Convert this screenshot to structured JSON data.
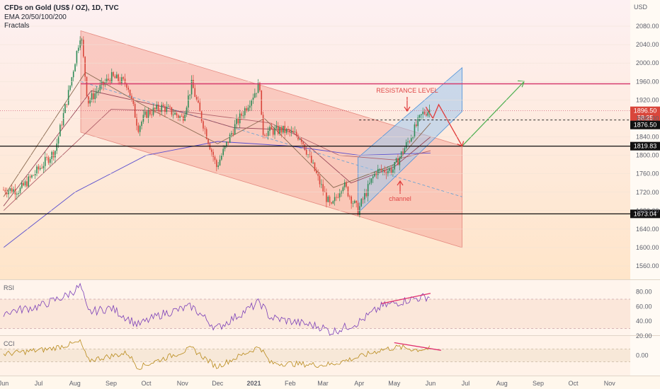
{
  "header": {
    "title": "CFDs on Gold (US$ / OZ), 1D, TVC",
    "indicator_1": "EMA 20/50/100/200",
    "indicator_2": "Fractals",
    "currency": "USD"
  },
  "colors": {
    "bg_top": "#fdf0f2",
    "bg_bottom": "#ffe5c9",
    "channel_fill": "#f6a59a",
    "up_channel_fill": "#9ec6ec",
    "candle_up": "#2e8b57",
    "candle_down": "#d9463b",
    "resistance": "#d63c6e",
    "forecast_red": "#e03b3b",
    "forecast_green": "#4caf50",
    "rsi_line": "#7b3fb8",
    "cci_line": "#b88a1a",
    "divergence": "#e0306e"
  },
  "chart_data": [
    {
      "type": "candlestick",
      "panel": "price",
      "ylim": [
        1530,
        2120
      ],
      "y_ticks": [
        1560,
        1600,
        1640,
        1680,
        1720,
        1760,
        1800,
        1840,
        1880,
        1920,
        1960,
        2000,
        2040,
        2080
      ],
      "x_labels": [
        "Jun",
        "Jul",
        "Aug",
        "Sep",
        "Oct",
        "Nov",
        "Dec",
        "2021",
        "Feb",
        "Mar",
        "Apr",
        "May",
        "Jun",
        "Jul",
        "Aug",
        "Sep",
        "Oct",
        "Nov"
      ],
      "close_path": [
        [
          "2020-06-01",
          1725
        ],
        [
          "2020-06-15",
          1725
        ],
        [
          "2020-07-01",
          1770
        ],
        [
          "2020-07-15",
          1810
        ],
        [
          "2020-07-27",
          1940
        ],
        [
          "2020-08-06",
          2067
        ],
        [
          "2020-08-12",
          1915
        ],
        [
          "2020-08-20",
          1940
        ],
        [
          "2020-09-01",
          1970
        ],
        [
          "2020-09-15",
          1955
        ],
        [
          "2020-09-24",
          1860
        ],
        [
          "2020-10-01",
          1890
        ],
        [
          "2020-10-15",
          1905
        ],
        [
          "2020-11-01",
          1880
        ],
        [
          "2020-11-09",
          1955
        ],
        [
          "2020-11-16",
          1890
        ],
        [
          "2020-11-30",
          1775
        ],
        [
          "2020-12-15",
          1860
        ],
        [
          "2021-01-06",
          1955
        ],
        [
          "2021-01-08",
          1850
        ],
        [
          "2021-01-25",
          1855
        ],
        [
          "2021-02-10",
          1840
        ],
        [
          "2021-02-28",
          1730
        ],
        [
          "2021-03-08",
          1685
        ],
        [
          "2021-03-18",
          1740
        ],
        [
          "2021-03-31",
          1680
        ],
        [
          "2021-04-15",
          1765
        ],
        [
          "2021-04-30",
          1770
        ],
        [
          "2021-05-15",
          1840
        ],
        [
          "2021-05-25",
          1890
        ],
        [
          "2021-06-01",
          1900
        ]
      ],
      "ema_20_path": [
        [
          "2020-06-01",
          1710
        ],
        [
          "2020-08-10",
          1980
        ],
        [
          "2020-10-01",
          1905
        ],
        [
          "2020-12-01",
          1825
        ],
        [
          "2021-01-10",
          1880
        ],
        [
          "2021-03-10",
          1730
        ],
        [
          "2021-05-01",
          1780
        ],
        [
          "2021-06-01",
          1870
        ]
      ],
      "ema_50_path": [
        [
          "2020-06-01",
          1690
        ],
        [
          "2020-08-15",
          1940
        ],
        [
          "2020-10-15",
          1905
        ],
        [
          "2020-12-15",
          1860
        ],
        [
          "2021-02-01",
          1855
        ],
        [
          "2021-03-25",
          1740
        ],
        [
          "2021-05-01",
          1775
        ],
        [
          "2021-06-01",
          1840
        ]
      ],
      "ema_100_path": [
        [
          "2020-06-01",
          1680
        ],
        [
          "2020-09-01",
          1900
        ],
        [
          "2020-11-01",
          1895
        ],
        [
          "2021-01-15",
          1870
        ],
        [
          "2021-03-15",
          1800
        ],
        [
          "2021-05-01",
          1790
        ],
        [
          "2021-06-01",
          1810
        ]
      ],
      "ema_200_path": [
        [
          "2020-06-01",
          1600
        ],
        [
          "2020-08-01",
          1720
        ],
        [
          "2020-10-01",
          1800
        ],
        [
          "2020-12-01",
          1830
        ],
        [
          "2021-02-01",
          1820
        ],
        [
          "2021-04-01",
          1800
        ],
        [
          "2021-06-01",
          1805
        ]
      ],
      "descending_channel": {
        "upper": [
          [
            "2020-08-06",
            2070
          ],
          [
            "2021-06-28",
            1820
          ]
        ],
        "lower": [
          [
            "2020-08-06",
            1850
          ],
          [
            "2021-06-28",
            1600
          ]
        ],
        "mid_end": [
          "2021-06-28",
          1710
        ]
      },
      "ascending_channel": {
        "lower": [
          [
            "2021-03-31",
            1675
          ],
          [
            "2021-06-28",
            1895
          ]
        ],
        "upper": [
          [
            "2021-03-31",
            1795
          ],
          [
            "2021-06-28",
            1990
          ]
        ]
      },
      "levels": [
        {
          "label": "1896.50",
          "sub": "58:25",
          "value": 1896.5,
          "style": "current"
        },
        {
          "label": "1876.50",
          "value": 1876.5,
          "style": "dashed"
        },
        {
          "label": "1819.83",
          "value": 1819.83,
          "style": "solid"
        },
        {
          "label": "1673.04",
          "value": 1673.04,
          "style": "solid"
        }
      ],
      "resistance_value": 1955,
      "forecast": [
        [
          "2021-05-28",
          1905
        ],
        [
          "2021-06-03",
          1880
        ],
        [
          "2021-06-08",
          1910
        ],
        [
          "2021-06-28",
          1820
        ],
        [
          "2021-08-20",
          1960
        ]
      ],
      "annotations": [
        "RESISTANCE LEVEL",
        "channel"
      ]
    },
    {
      "type": "line",
      "panel": "RSI",
      "name": "RSI",
      "ylim": [
        15,
        90
      ],
      "y_ticks": [
        "20.00",
        "40.00",
        "60.00",
        "80.00"
      ],
      "bands": [
        30,
        70
      ],
      "path": [
        [
          "2020-06-01",
          52
        ],
        [
          "2020-07-01",
          60
        ],
        [
          "2020-07-25",
          75
        ],
        [
          "2020-08-06",
          88
        ],
        [
          "2020-08-12",
          52
        ],
        [
          "2020-09-01",
          58
        ],
        [
          "2020-09-24",
          35
        ],
        [
          "2020-10-15",
          50
        ],
        [
          "2020-11-09",
          60
        ],
        [
          "2020-11-30",
          30
        ],
        [
          "2021-01-06",
          66
        ],
        [
          "2021-01-15",
          45
        ],
        [
          "2021-02-28",
          32
        ],
        [
          "2021-03-08",
          25
        ],
        [
          "2021-03-31",
          38
        ],
        [
          "2021-04-20",
          60
        ],
        [
          "2021-05-15",
          70
        ],
        [
          "2021-06-01",
          74
        ]
      ],
      "divergence": [
        [
          "2021-04-20",
          64
        ],
        [
          "2021-06-01",
          78
        ]
      ]
    },
    {
      "type": "line",
      "panel": "CCI",
      "name": "CCI",
      "ylim": [
        -300,
        300
      ],
      "y_ticks": [
        "0.00"
      ],
      "bands": [
        -100,
        100
      ],
      "path": [
        [
          "2020-06-01",
          20
        ],
        [
          "2020-07-10",
          100
        ],
        [
          "2020-08-06",
          210
        ],
        [
          "2020-08-12",
          -80
        ],
        [
          "2020-09-15",
          40
        ],
        [
          "2020-09-24",
          -190
        ],
        [
          "2020-11-09",
          110
        ],
        [
          "2020-11-30",
          -180
        ],
        [
          "2021-01-06",
          140
        ],
        [
          "2021-01-15",
          -120
        ],
        [
          "2021-02-28",
          -150
        ],
        [
          "2021-03-08",
          -140
        ],
        [
          "2021-03-31",
          -30
        ],
        [
          "2021-04-20",
          90
        ],
        [
          "2021-05-05",
          130
        ],
        [
          "2021-05-20",
          90
        ],
        [
          "2021-06-01",
          110
        ]
      ],
      "divergence": [
        [
          "2021-05-01",
          200
        ],
        [
          "2021-06-10",
          80
        ]
      ]
    }
  ]
}
